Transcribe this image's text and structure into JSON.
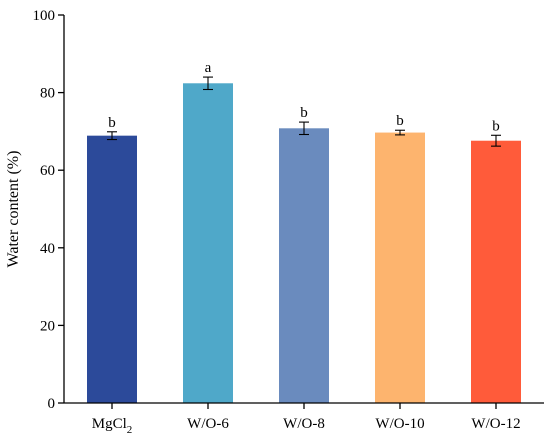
{
  "chart_data": {
    "type": "bar",
    "ylabel": "Water content (%)",
    "ylim": [
      0,
      100
    ],
    "yticks": [
      0,
      20,
      40,
      60,
      80,
      100
    ],
    "grid": false,
    "legend": "none",
    "categories": [
      {
        "main": "MgCl",
        "sub": "2"
      },
      {
        "main": "W/O-6",
        "sub": ""
      },
      {
        "main": "W/O-8",
        "sub": ""
      },
      {
        "main": "W/O-10",
        "sub": ""
      },
      {
        "main": "W/O-12",
        "sub": ""
      }
    ],
    "values": [
      68.9,
      82.4,
      70.8,
      69.7,
      67.6
    ],
    "errors": [
      1.0,
      1.6,
      1.6,
      0.6,
      1.4
    ],
    "significance": [
      "b",
      "a",
      "b",
      "b",
      "b"
    ],
    "colors": [
      "#2C4A9A",
      "#4FA8C9",
      "#6A8BBE",
      "#FDB46E",
      "#FF5B3A"
    ]
  }
}
